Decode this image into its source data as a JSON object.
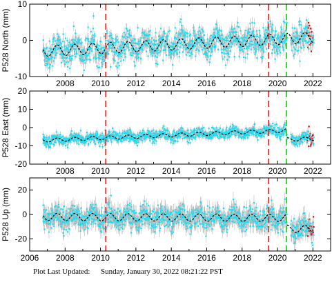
{
  "footer": {
    "label": "Plot Last Updated:",
    "timestamp": "Sunday, January 30, 2022 08:21:22 PST"
  },
  "style": {
    "point_color": "#00e5ff",
    "errorbar_color": "#b8b8b8",
    "model_color": "#000000",
    "outlier_color": "#e00000",
    "red_line_color": "#e8281e",
    "green_line_color": "#2ec82e"
  },
  "chart_data": [
    {
      "type": "scatter",
      "ylabel": "P528 North (mm)",
      "xlim": [
        2006,
        2023
      ],
      "ylim": [
        -10,
        10
      ],
      "yticks": [
        -10,
        0,
        10
      ],
      "xticks": [
        2008,
        2010,
        2012,
        2014,
        2016,
        2018,
        2020,
        2022
      ],
      "xtick_labels_shown": true,
      "vertical_lines": [
        {
          "x": 2010.3,
          "color": "red"
        },
        {
          "x": 2019.5,
          "color": "red"
        },
        {
          "x": 2020.5,
          "color": "green"
        }
      ],
      "series": {
        "start": 2006.75,
        "end": 2022.05,
        "trend_start": -3.0,
        "trend_end": 0.8,
        "seasonal_amplitude": 1.5,
        "scatter": 2.0,
        "error": 1.3,
        "outliers_from": 2021.7
      }
    },
    {
      "type": "scatter",
      "ylabel": "P528 East (mm)",
      "xlim": [
        2006,
        2023
      ],
      "ylim": [
        -20,
        20
      ],
      "yticks": [
        -20,
        -10,
        0,
        10,
        20
      ],
      "xticks": [
        2008,
        2010,
        2012,
        2014,
        2016,
        2018,
        2020,
        2022
      ],
      "xtick_labels_shown": true,
      "vertical_lines": [
        {
          "x": 2010.3,
          "color": "red"
        },
        {
          "x": 2019.5,
          "color": "red"
        },
        {
          "x": 2020.5,
          "color": "green"
        }
      ],
      "series": {
        "start": 2006.75,
        "end": 2022.05,
        "trend_start": -7.0,
        "trend_end": -1.0,
        "seasonal_amplitude": 1.0,
        "scatter": 1.5,
        "error": 1.5,
        "offset_after": 2020.5,
        "offset_value": -5.0,
        "outliers_from": 2021.7
      }
    },
    {
      "type": "scatter",
      "ylabel": "P528 Up (mm)",
      "xlim": [
        2006,
        2023
      ],
      "ylim": [
        -30,
        30
      ],
      "yticks": [
        -20,
        0,
        20
      ],
      "xticks": [
        2006,
        2008,
        2010,
        2012,
        2014,
        2016,
        2018,
        2020,
        2022
      ],
      "xtick_labels_shown": true,
      "vertical_lines": [
        {
          "x": 2010.3,
          "color": "red"
        },
        {
          "x": 2019.5,
          "color": "red"
        },
        {
          "x": 2020.5,
          "color": "green"
        }
      ],
      "series": {
        "start": 2006.75,
        "end": 2022.05,
        "trend_start": -2.0,
        "trend_end": -3.0,
        "seasonal_amplitude": 3.0,
        "scatter": 4.5,
        "error": 5.0,
        "offset_after": 2020.5,
        "offset_value": -9.0,
        "outliers_from": 2021.7
      }
    }
  ]
}
